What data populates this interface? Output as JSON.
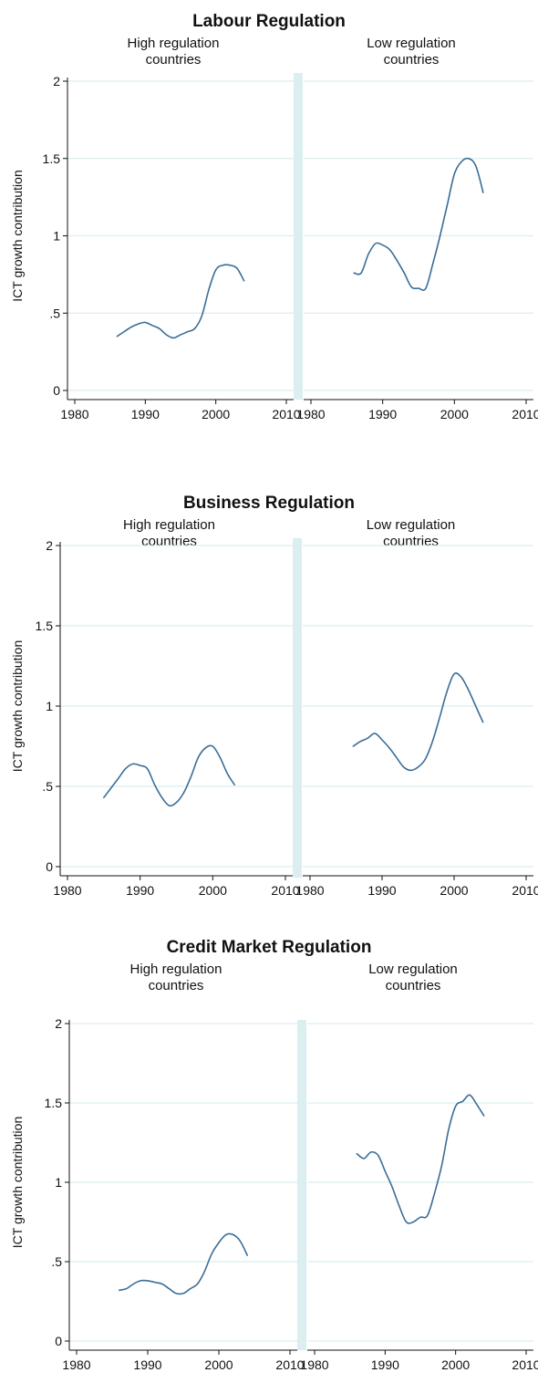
{
  "chart_data": [
    {
      "type": "line",
      "title": "Labour Regulation",
      "ylabel": "ICT growth contribution",
      "ylim": [
        0,
        2
      ],
      "xlim": [
        1980,
        2010
      ],
      "grid": true,
      "yticks": [
        "0",
        ".5",
        "1",
        "1.5",
        "2"
      ],
      "xticks": [
        "1980",
        "1990",
        "2000",
        "2010"
      ],
      "panels": [
        {
          "subtitle": "High regulation\ncountries",
          "x": [
            1986,
            1987,
            1988,
            1989,
            1990,
            1991,
            1992,
            1993,
            1994,
            1995,
            1996,
            1997,
            1998,
            1999,
            2000,
            2001,
            2002,
            2003,
            2004
          ],
          "y": [
            0.35,
            0.38,
            0.41,
            0.43,
            0.44,
            0.42,
            0.4,
            0.36,
            0.34,
            0.36,
            0.38,
            0.4,
            0.48,
            0.65,
            0.78,
            0.81,
            0.81,
            0.79,
            0.71
          ]
        },
        {
          "subtitle": "Low regulation\ncountries",
          "x": [
            1986,
            1987,
            1988,
            1989,
            1990,
            1991,
            1992,
            1993,
            1994,
            1995,
            1996,
            1997,
            1998,
            1999,
            2000,
            2001,
            2002,
            2003,
            2004
          ],
          "y": [
            0.76,
            0.76,
            0.88,
            0.95,
            0.94,
            0.91,
            0.84,
            0.76,
            0.67,
            0.66,
            0.66,
            0.82,
            1.0,
            1.2,
            1.4,
            1.48,
            1.5,
            1.45,
            1.28
          ]
        }
      ]
    },
    {
      "type": "line",
      "title": "Business Regulation",
      "ylabel": "ICT growth contribution",
      "ylim": [
        0,
        2
      ],
      "xlim": [
        1980,
        2010
      ],
      "grid": true,
      "yticks": [
        "0",
        ".5",
        "1",
        "1.5",
        "2"
      ],
      "xticks": [
        "1980",
        "1990",
        "2000",
        "2010"
      ],
      "panels": [
        {
          "subtitle": "High regulation\ncountries",
          "x": [
            1985,
            1986,
            1987,
            1988,
            1989,
            1990,
            1991,
            1992,
            1993,
            1994,
            1995,
            1996,
            1997,
            1998,
            1999,
            2000,
            2001,
            2002,
            2003
          ],
          "y": [
            0.43,
            0.49,
            0.55,
            0.61,
            0.64,
            0.63,
            0.61,
            0.51,
            0.43,
            0.38,
            0.4,
            0.46,
            0.56,
            0.68,
            0.74,
            0.75,
            0.68,
            0.58,
            0.51
          ]
        },
        {
          "subtitle": "Low regulation\ncountries",
          "x": [
            1986,
            1987,
            1988,
            1989,
            1990,
            1991,
            1992,
            1993,
            1994,
            1995,
            1996,
            1997,
            1998,
            1999,
            2000,
            2001,
            2002,
            2003,
            2004
          ],
          "y": [
            0.75,
            0.78,
            0.8,
            0.83,
            0.79,
            0.74,
            0.68,
            0.62,
            0.6,
            0.62,
            0.67,
            0.78,
            0.93,
            1.09,
            1.2,
            1.18,
            1.1,
            1.0,
            0.9
          ]
        }
      ]
    },
    {
      "type": "line",
      "title": "Credit Market Regulation",
      "ylabel": "ICT growth contribution",
      "ylim": [
        0,
        2
      ],
      "xlim": [
        1980,
        2010
      ],
      "grid": true,
      "yticks": [
        "0",
        ".5",
        "1",
        "1.5",
        "2"
      ],
      "xticks": [
        "1980",
        "1990",
        "2000",
        "2010"
      ],
      "panels": [
        {
          "subtitle": "High regulation\ncountries",
          "x": [
            1986,
            1987,
            1988,
            1989,
            1990,
            1991,
            1992,
            1993,
            1994,
            1995,
            1996,
            1997,
            1998,
            1999,
            2000,
            2001,
            2002,
            2003,
            2004
          ],
          "y": [
            0.32,
            0.33,
            0.36,
            0.38,
            0.38,
            0.37,
            0.36,
            0.33,
            0.3,
            0.3,
            0.33,
            0.36,
            0.44,
            0.55,
            0.62,
            0.67,
            0.67,
            0.63,
            0.54
          ]
        },
        {
          "subtitle": "Low regulation\ncountries",
          "x": [
            1986,
            1987,
            1988,
            1989,
            1990,
            1991,
            1992,
            1993,
            1994,
            1995,
            1996,
            1997,
            1998,
            1999,
            2000,
            2001,
            2002,
            2003,
            2004
          ],
          "y": [
            1.18,
            1.15,
            1.19,
            1.17,
            1.07,
            0.97,
            0.85,
            0.75,
            0.75,
            0.78,
            0.79,
            0.93,
            1.1,
            1.33,
            1.48,
            1.51,
            1.55,
            1.49,
            1.42
          ]
        }
      ]
    }
  ]
}
